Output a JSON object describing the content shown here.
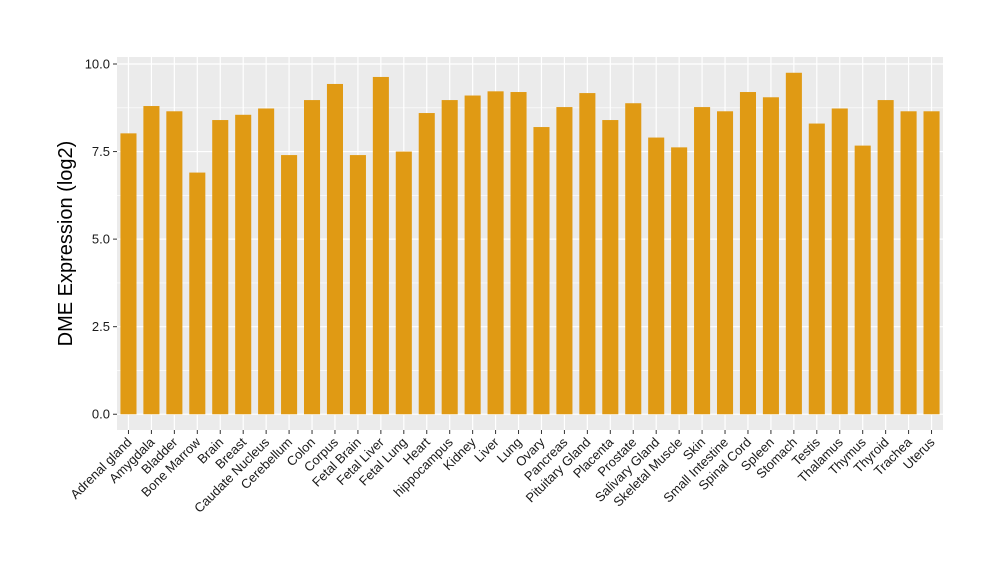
{
  "chart_data": {
    "type": "bar",
    "title": "",
    "xlabel": "",
    "ylabel": "DME Expression (log2)",
    "ylim": [
      -0.45,
      10.2
    ],
    "yticks": [
      0.0,
      2.5,
      5.0,
      7.5,
      10.0
    ],
    "ytick_labels": [
      "0.0",
      "2.5",
      "5.0",
      "7.5",
      "10.0"
    ],
    "grid": true,
    "legend": "none",
    "colors": {
      "bar": "#E09A14",
      "panel": "#EBEBEB",
      "grid": "#FFFFFF"
    },
    "categories": [
      "Adrenal gland",
      "Amygdala",
      "Bladder",
      "Bone Marrow",
      "Brain",
      "Breast",
      "Caudate Nucleus",
      "Cerebellum",
      "Colon",
      "Corpus",
      "Fetal Brain",
      "Fetal Liver",
      "Fetal Lung",
      "Heart",
      "hippocampus",
      "Kidney",
      "Liver",
      "Lung",
      "Ovary",
      "Pancreas",
      "Pituitary Gland",
      "Placenta",
      "Prostate",
      "Salivary Gland",
      "Skeletal Muscle",
      "Skin",
      "Small Intestine",
      "Spinal Cord",
      "Spleen",
      "Stomach",
      "Testis",
      "Thalamus",
      "Thymus",
      "Thyroid",
      "Trachea",
      "Uterus"
    ],
    "values": [
      8.02,
      8.8,
      8.65,
      6.9,
      8.4,
      8.55,
      8.73,
      7.4,
      8.97,
      9.43,
      7.4,
      9.63,
      7.5,
      8.6,
      8.97,
      9.1,
      9.22,
      9.2,
      8.2,
      8.77,
      9.17,
      8.4,
      8.88,
      7.9,
      7.62,
      8.77,
      8.65,
      9.2,
      9.05,
      9.75,
      8.3,
      8.73,
      7.67,
      8.97,
      8.65,
      8.65
    ]
  }
}
